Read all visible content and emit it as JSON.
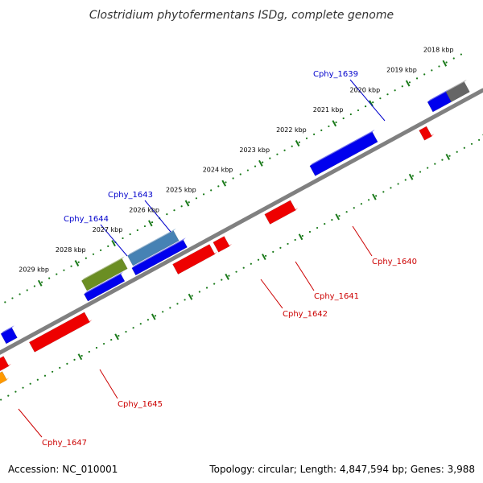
{
  "title": "Clostridium phytofermentans ISDg, complete genome",
  "accession_text": "Accession: NC_010001",
  "topology_text": "Topology: circular; Length: 4,847,594 bp; Genes: 3,988",
  "colors": {
    "backbone": "#808080",
    "ticks": "#1a7a1a",
    "forward_label": "#0000cc",
    "reverse_label": "#cc0000",
    "forward_gene": "#0000ee",
    "reverse_gene": "#ee0000",
    "highlight_green": "#6b8e23",
    "highlight_steel": "#4682b4",
    "highlight_orange": "#ff9900",
    "highlight_gray": "#666666"
  },
  "kbp_ticks": [
    {
      "label": "2018 kbp",
      "kb": 2018
    },
    {
      "label": "2019 kbp",
      "kb": 2019
    },
    {
      "label": "2020 kbp",
      "kb": 2020
    },
    {
      "label": "2021 kbp",
      "kb": 2021
    },
    {
      "label": "2022 kbp",
      "kb": 2022
    },
    {
      "label": "2023 kbp",
      "kb": 2023
    },
    {
      "label": "2024 kbp",
      "kb": 2024
    },
    {
      "label": "2025 kbp",
      "kb": 2025
    },
    {
      "label": "2026 kbp",
      "kb": 2026
    },
    {
      "label": "2027 kbp",
      "kb": 2027
    },
    {
      "label": "2028 kbp",
      "kb": 2028
    },
    {
      "label": "2029 kbp",
      "kb": 2029
    }
  ],
  "genes": [
    {
      "kb_start": 2017.8,
      "kb_end": 2018.3,
      "strand": "forward",
      "color": "highlight_gray"
    },
    {
      "kb_start": 2018.3,
      "kb_end": 2018.8,
      "strand": "forward",
      "color": "forward_gene"
    },
    {
      "kb_start": 2019.1,
      "kb_end": 2019.3,
      "strand": "reverse",
      "color": "reverse_gene"
    },
    {
      "kb_start": 2020.3,
      "kb_end": 2022.0,
      "strand": "forward",
      "color": "forward_gene"
    },
    {
      "kb_start": 2022.8,
      "kb_end": 2023.5,
      "strand": "reverse",
      "color": "reverse_gene"
    },
    {
      "kb_start": 2024.6,
      "kb_end": 2024.9,
      "strand": "reverse",
      "color": "reverse_gene"
    },
    {
      "kb_start": 2025.0,
      "kb_end": 2026.0,
      "strand": "reverse",
      "color": "reverse_gene"
    },
    {
      "kb_start": 2025.6,
      "kb_end": 2026.85,
      "strand": "forward",
      "color": "highlight_steel"
    },
    {
      "kb_start": 2025.5,
      "kb_end": 2026.9,
      "strand": "forward",
      "color": "forward_gene",
      "inner": true
    },
    {
      "kb_start": 2027.0,
      "kb_end": 2028.1,
      "strand": "forward",
      "color": "highlight_green"
    },
    {
      "kb_start": 2027.2,
      "kb_end": 2028.2,
      "strand": "forward",
      "color": "forward_gene",
      "inner": true
    },
    {
      "kb_start": 2028.4,
      "kb_end": 2029.9,
      "strand": "reverse",
      "color": "reverse_gene"
    },
    {
      "kb_start": 2030.1,
      "kb_end": 2030.4,
      "strand": "forward",
      "color": "forward_gene"
    },
    {
      "kb_start": 2030.6,
      "kb_end": 2031.3,
      "strand": "reverse",
      "color": "reverse_gene"
    },
    {
      "kb_start": 2030.8,
      "kb_end": 2031.5,
      "strand": "reverse",
      "color": "highlight_orange",
      "outer": true
    }
  ],
  "gene_labels": [
    {
      "text": "Cphy_1639",
      "side": "forward"
    },
    {
      "text": "Cphy_1643",
      "side": "forward"
    },
    {
      "text": "Cphy_1644",
      "side": "forward"
    },
    {
      "text": "Cphy_1640",
      "side": "reverse"
    },
    {
      "text": "Cphy_1641",
      "side": "reverse"
    },
    {
      "text": "Cphy_1642",
      "side": "reverse"
    },
    {
      "text": "Cphy_1645",
      "side": "reverse"
    },
    {
      "text": "Cphy_1647",
      "side": "reverse"
    }
  ]
}
